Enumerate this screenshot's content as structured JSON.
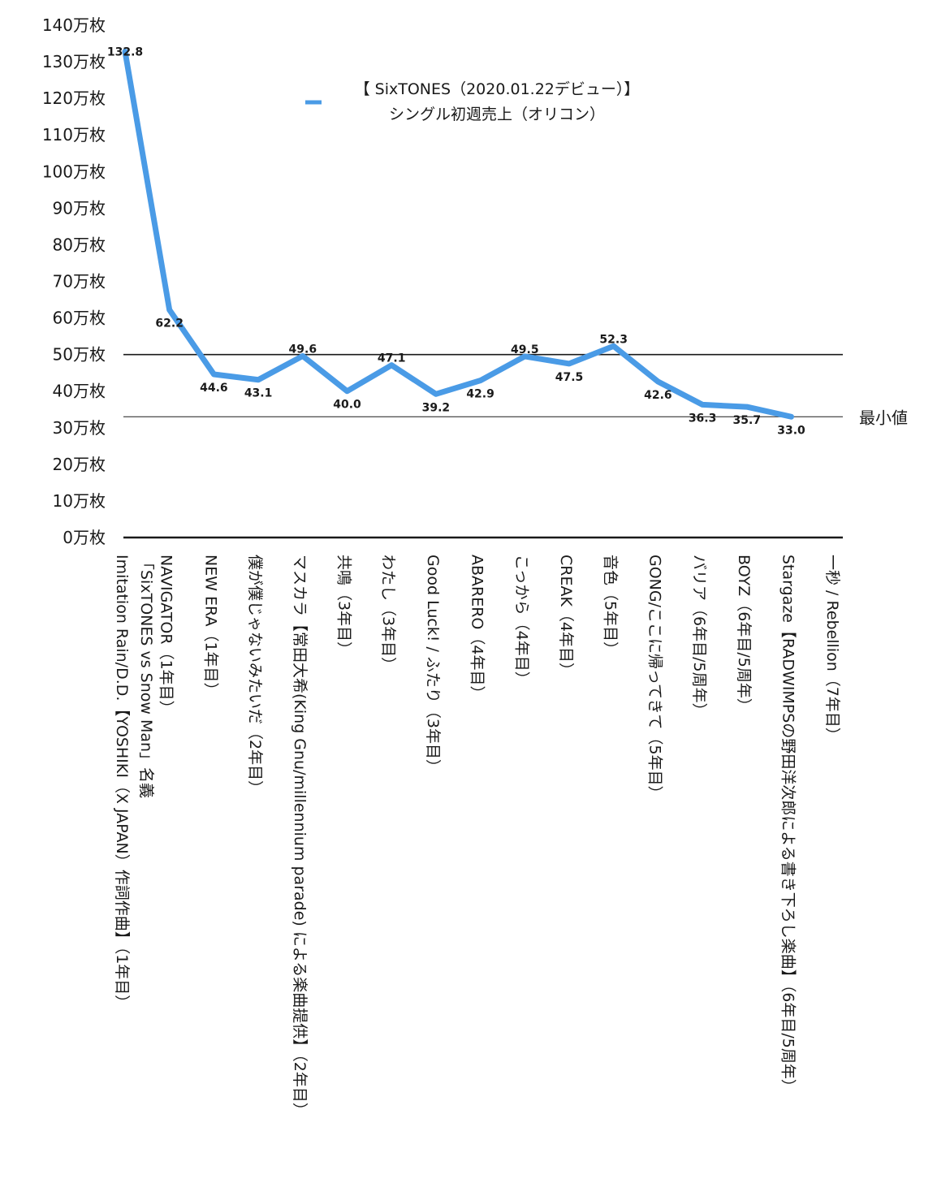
{
  "chart_data": {
    "type": "line",
    "title": "",
    "xlabel": "",
    "ylabel": "",
    "ylim": [
      0,
      140
    ],
    "y_tick_values": [
      0,
      10,
      20,
      30,
      40,
      50,
      60,
      70,
      80,
      90,
      100,
      110,
      120,
      130,
      140
    ],
    "y_tick_labels": [
      "0万枚",
      "10万枚",
      "20万枚",
      "30万枚",
      "40万枚",
      "50万枚",
      "60万枚",
      "70万枚",
      "80万枚",
      "90万枚",
      "100万枚",
      "110万枚",
      "120万枚",
      "130万枚",
      "140万枚"
    ],
    "grid": false,
    "legend_position": "top-center",
    "line_color": "#4a9be6",
    "categories": [
      [
        "Imitation Rain/D.D.【YOSHIKI（X JAPAN）作詞作曲】（1年目）",
        "「SixTONES vs Snow Man」名義"
      ],
      [
        "NAVIGATOR（1年目）"
      ],
      [
        "NEW ERA（1年目）"
      ],
      [
        "僕が僕じゃないみたいだ（2年目）"
      ],
      [
        "マスカラ【常田大希(King Gnu/millennium parade) による楽曲提供】（2年目）"
      ],
      [
        "共鳴（3年目）"
      ],
      [
        "わたし（3年目）"
      ],
      [
        "Good Luck! / ふたり（3年目）"
      ],
      [
        "ABARERO（4年目）"
      ],
      [
        "こっから（4年目）"
      ],
      [
        "CREAK（4年目）"
      ],
      [
        "音色（5年目）"
      ],
      [
        "GONG/ここに帰ってきて（5年目）"
      ],
      [
        "バリア（6年目/5周年）"
      ],
      [
        "BOYZ（6年目/5周年）"
      ],
      [
        "Stargaze【RADWIMPSの野田洋次郎による書き下ろし楽曲】（6年目/5周年）"
      ],
      [
        "一秒 / Rebellion（7年目）"
      ]
    ],
    "series": [
      {
        "name": "【 SixTONES（2020.01.22デビュー）】 シングル初週売上（オリコン）",
        "values": [
          132.8,
          62.2,
          44.6,
          43.1,
          49.6,
          40.0,
          47.1,
          39.2,
          42.9,
          49.5,
          47.5,
          52.3,
          42.6,
          36.3,
          35.7,
          33.0,
          null
        ],
        "labels": [
          "132.8",
          "62.2",
          "44.6",
          "43.1",
          "49.6",
          "40.0",
          "47.1",
          "39.2",
          "42.9",
          "49.5",
          "47.5",
          "52.3",
          "42.6",
          "36.3",
          "35.7",
          "33.0",
          ""
        ]
      }
    ],
    "legend": {
      "line1": "【 SixTONES（2020.01.22デビュー）】",
      "line2": "シングル初週売上（オリコン）"
    },
    "reference_lines": [
      {
        "value": 50,
        "label": ""
      },
      {
        "value": 33.0,
        "label": "最小値"
      }
    ]
  }
}
